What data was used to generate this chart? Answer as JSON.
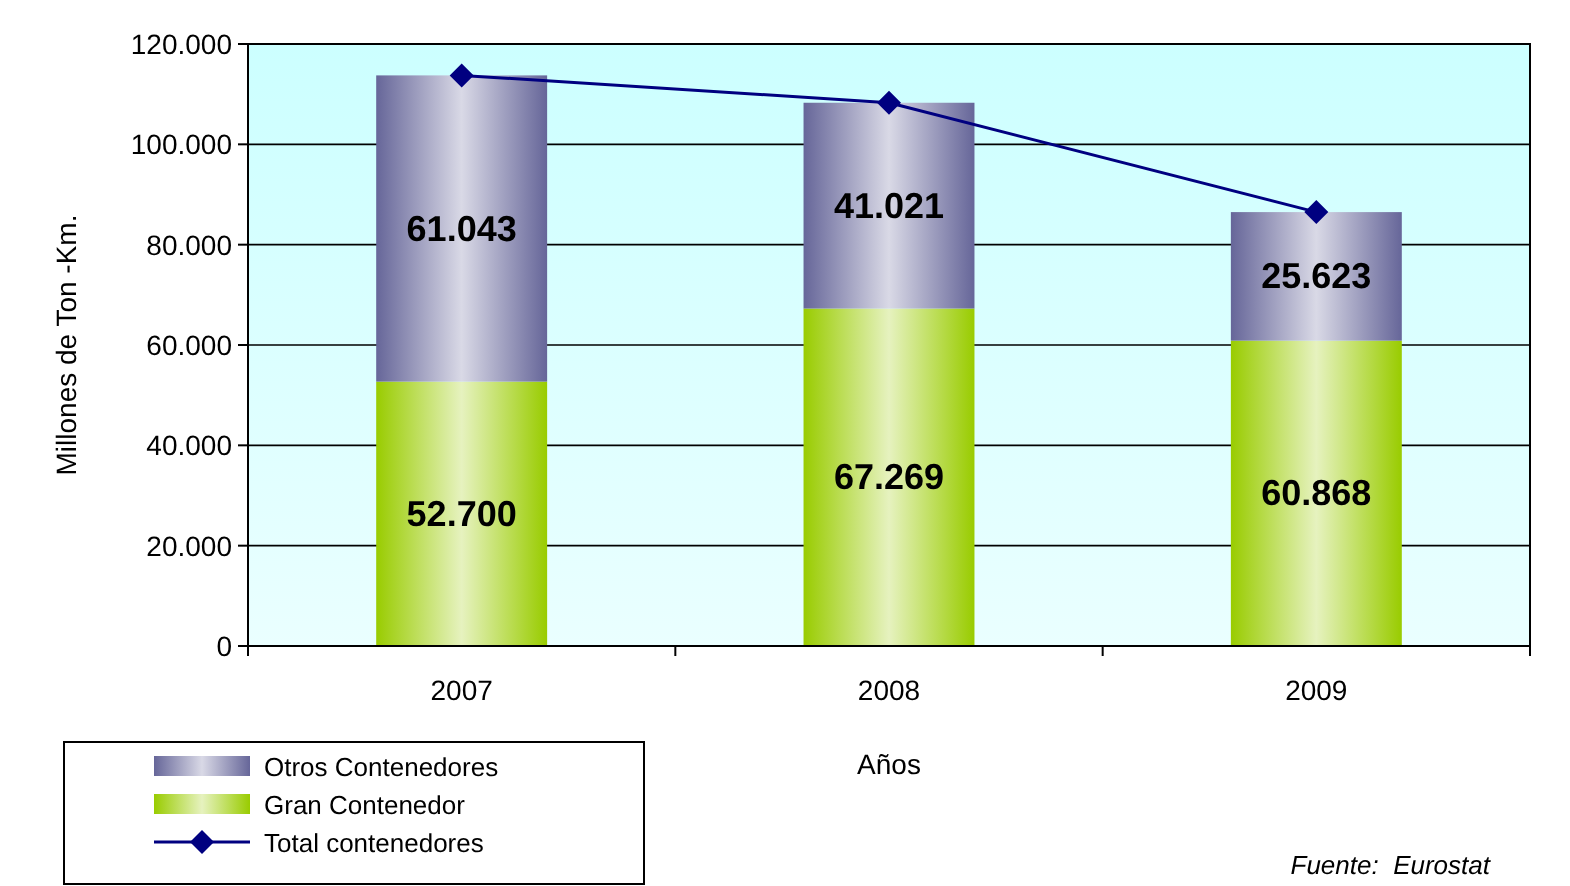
{
  "chart_data": {
    "type": "bar",
    "stacked": true,
    "xlabel": "Años",
    "ylabel": "Millones de Ton -Km.",
    "categories": [
      "2007",
      "2008",
      "2009"
    ],
    "series": [
      {
        "name": "Gran Contenedor",
        "color": "#99cc00",
        "values": [
          52700,
          67269,
          60868
        ],
        "value_labels": [
          "52.700",
          "67.269",
          "60.868"
        ]
      },
      {
        "name": "Otros Contenedores",
        "color": "#666699",
        "values": [
          61043,
          41021,
          25623
        ],
        "value_labels": [
          "61.043",
          "41.021",
          "25.623"
        ]
      },
      {
        "name": "Total contenedores",
        "type": "line",
        "color": "#000080",
        "marker": "diamond",
        "values": [
          113743,
          108290,
          86491
        ]
      }
    ],
    "ylim": [
      0,
      120000
    ],
    "yticks": [
      {
        "value": 0,
        "label": "0"
      },
      {
        "value": 20000,
        "label": "20.000"
      },
      {
        "value": 40000,
        "label": "40.000"
      },
      {
        "value": 60000,
        "label": "60.000"
      },
      {
        "value": 80000,
        "label": "80.000"
      },
      {
        "value": 100000,
        "label": "100.000"
      },
      {
        "value": 120000,
        "label": "120.000"
      }
    ],
    "grid": "y",
    "legend": "bottom left",
    "annotations": [
      "Fuente:  Eurostat"
    ]
  }
}
